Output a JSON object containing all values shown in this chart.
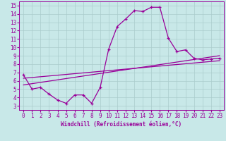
{
  "xlabel": "Windchill (Refroidissement éolien,°C)",
  "bg_color": "#c8e8e8",
  "line_color": "#990099",
  "grid_color": "#aacccc",
  "x_ticks": [
    0,
    1,
    2,
    3,
    4,
    5,
    6,
    7,
    8,
    9,
    10,
    11,
    12,
    13,
    14,
    15,
    16,
    17,
    18,
    19,
    20,
    21,
    22,
    23
  ],
  "y_ticks": [
    3,
    4,
    5,
    6,
    7,
    8,
    9,
    10,
    11,
    12,
    13,
    14,
    15
  ],
  "xlim": [
    -0.5,
    23.5
  ],
  "ylim": [
    2.5,
    15.5
  ],
  "line1_x": [
    0,
    1,
    2,
    3,
    4,
    5,
    6,
    7,
    8,
    9,
    10,
    11,
    12,
    13,
    14,
    15,
    16,
    17,
    18,
    19,
    20,
    21,
    22,
    23
  ],
  "line1_y": [
    6.7,
    5.0,
    5.2,
    4.4,
    3.7,
    3.3,
    4.3,
    4.3,
    3.3,
    5.2,
    9.8,
    12.5,
    13.4,
    14.4,
    14.3,
    14.8,
    14.8,
    11.1,
    9.5,
    9.7,
    8.7,
    8.5,
    8.6,
    8.7
  ],
  "line2_x": [
    0,
    23
  ],
  "line2_y": [
    5.5,
    9.0
  ],
  "line3_x": [
    0,
    23
  ],
  "line3_y": [
    6.3,
    8.4
  ]
}
